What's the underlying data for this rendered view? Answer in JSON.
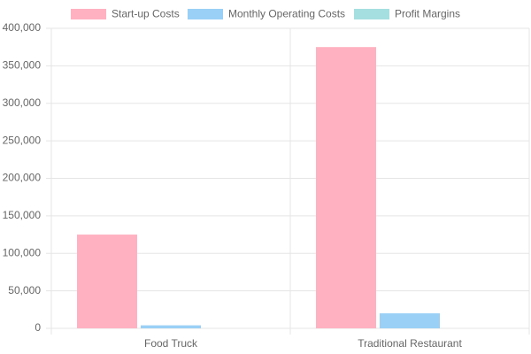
{
  "chart_data": {
    "type": "bar",
    "categories": [
      "Food Truck",
      "Traditional Restaurant"
    ],
    "series": [
      {
        "name": "Start-up Costs",
        "color": "#ffb1c1",
        "values": [
          125000,
          375000
        ]
      },
      {
        "name": "Monthly Operating Costs",
        "color": "#9ad0f5",
        "values": [
          4000,
          20000
        ]
      },
      {
        "name": "Profit Margins",
        "color": "#a5dfdf",
        "values": [
          10,
          5
        ]
      }
    ],
    "ylim": [
      0,
      400000
    ],
    "yticks": [
      0,
      {
        "value": 50000,
        "label": "50,000"
      },
      {
        "value": 100000,
        "label": "100,000"
      },
      {
        "value": 150000,
        "label": "150,000"
      },
      {
        "value": 200000,
        "label": "200,000"
      },
      {
        "value": 250000,
        "label": "250,000"
      },
      {
        "value": 300000,
        "label": "300,000"
      },
      {
        "value": 350000,
        "label": "350,000"
      },
      {
        "value": 400000,
        "label": "400,000"
      }
    ],
    "grid": true,
    "legend": "top"
  }
}
